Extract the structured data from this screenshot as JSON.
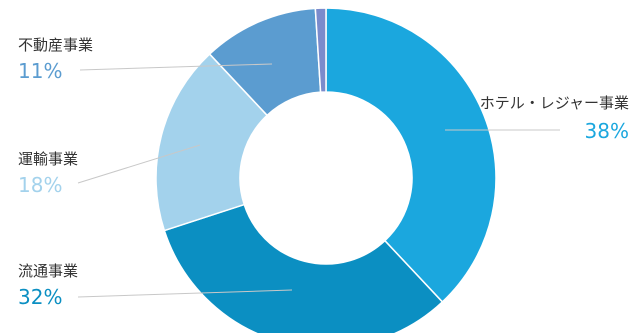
{
  "chart_data": {
    "type": "pie",
    "donut": true,
    "title": "",
    "legend": "none",
    "slices": [
      {
        "label": "ホテル・レジャー事業",
        "value": 38,
        "value_label": "38%",
        "color": "#1ba7de",
        "label_color": "#1ba7de"
      },
      {
        "label": "流通事業",
        "value": 32,
        "value_label": "32%",
        "color": "#0b8fc2",
        "label_color": "#0b8fc2"
      },
      {
        "label": "運輸事業",
        "value": 18,
        "value_label": "18%",
        "color": "#a3d2ec",
        "label_color": "#a3d2ec"
      },
      {
        "label": "不動産事業",
        "value": 11,
        "value_label": "11%",
        "color": "#5b9cd0",
        "label_color": "#5b9cd0"
      },
      {
        "label": "",
        "value": 1,
        "value_label": "",
        "color": "#7b8bcc",
        "label_color": "#7b8bcc"
      }
    ]
  }
}
